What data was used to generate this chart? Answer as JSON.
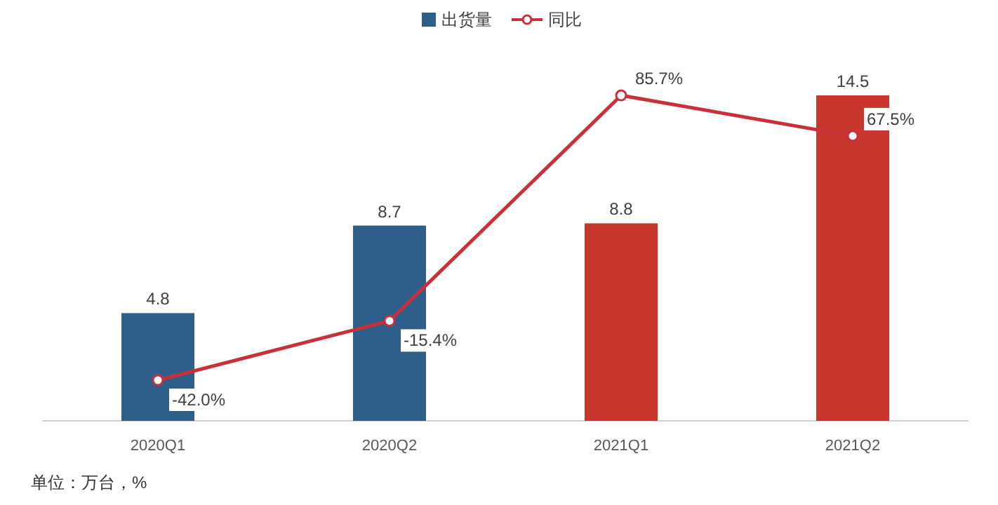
{
  "chart_data": {
    "type": "bar",
    "categories": [
      "2020Q1",
      "2020Q2",
      "2021Q1",
      "2021Q2"
    ],
    "series": [
      {
        "name": "出货量",
        "color": "#2e5f8a",
        "colors": [
          "#2e5f8a",
          "#2e5f8a",
          "#c8362e",
          "#c8362e"
        ],
        "values": [
          4.8,
          8.7,
          8.8,
          14.5
        ]
      },
      {
        "name": "同比",
        "type": "line",
        "axis": "y2",
        "color": "#c9303a",
        "marker": "circle",
        "values": [
          -42.0,
          -15.4,
          85.7,
          67.5
        ],
        "value_labels": [
          "-42.0%",
          "-15.4%",
          "85.7%",
          "67.5%"
        ]
      }
    ],
    "data_labels": true,
    "legend": "top",
    "grid": false,
    "annotations": [
      "单位：万台，%"
    ]
  }
}
